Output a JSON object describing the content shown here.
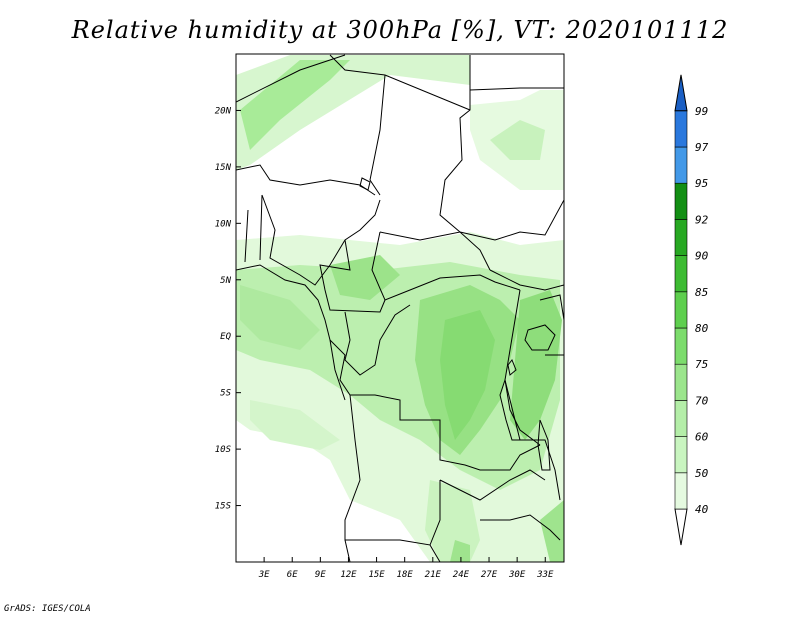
{
  "title": "Relative humidity at 300hPa [%], VT: 2020101112",
  "credit": "GrADS: IGES/COLA",
  "map": {
    "lon_range": [
      0,
      35
    ],
    "lat_range": [
      -20,
      25
    ],
    "lon_ticks": [
      {
        "value": 3,
        "label": "3E"
      },
      {
        "value": 6,
        "label": "6E"
      },
      {
        "value": 9,
        "label": "9E"
      },
      {
        "value": 12,
        "label": "12E"
      },
      {
        "value": 15,
        "label": "15E"
      },
      {
        "value": 18,
        "label": "18E"
      },
      {
        "value": 21,
        "label": "21E"
      },
      {
        "value": 24,
        "label": "24E"
      },
      {
        "value": 27,
        "label": "27E"
      },
      {
        "value": 30,
        "label": "30E"
      },
      {
        "value": 33,
        "label": "33E"
      }
    ],
    "lat_ticks": [
      {
        "value": 20,
        "label": "20N"
      },
      {
        "value": 15,
        "label": "15N"
      },
      {
        "value": 10,
        "label": "10N"
      },
      {
        "value": 5,
        "label": "5N"
      },
      {
        "value": 0,
        "label": "EQ"
      },
      {
        "value": -5,
        "label": "5S"
      },
      {
        "value": -10,
        "label": "10S"
      },
      {
        "value": -15,
        "label": "15S"
      }
    ]
  },
  "colorbar": {
    "levels": [
      {
        "label": "40",
        "color": "#ffffff"
      },
      {
        "label": "50",
        "color": "#e5fae0"
      },
      {
        "label": "60",
        "color": "#c9f5c0"
      },
      {
        "label": "70",
        "color": "#b4eea8"
      },
      {
        "label": "75",
        "color": "#9be58c"
      },
      {
        "label": "80",
        "color": "#7cdc6c"
      },
      {
        "label": "85",
        "color": "#5ecf4e"
      },
      {
        "label": "90",
        "color": "#3dbb32"
      },
      {
        "label": "92",
        "color": "#27a822"
      },
      {
        "label": "95",
        "color": "#138f14"
      },
      {
        "label": "97",
        "color": "#4399e8"
      },
      {
        "label": "99",
        "color": "#2a78dd"
      }
    ],
    "top_color": "#1a5fc4"
  }
}
